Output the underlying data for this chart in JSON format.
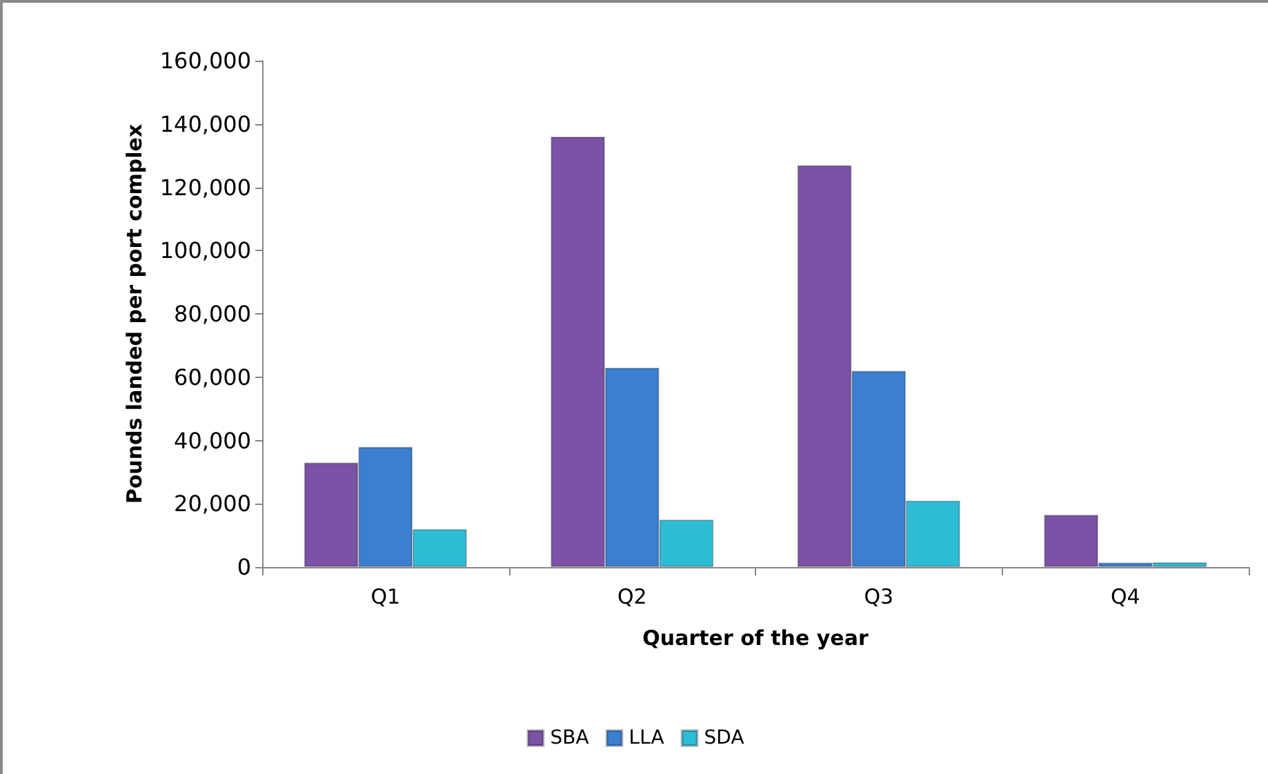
{
  "chart_data": {
    "type": "bar",
    "xlabel": "Quarter of the year",
    "ylabel": "Pounds landed per port complex",
    "categories": [
      "Q1",
      "Q2",
      "Q3",
      "Q4"
    ],
    "series": [
      {
        "name": "SBA",
        "color": "#7b52a6",
        "values": [
          33000,
          136000,
          127000,
          16500
        ]
      },
      {
        "name": "LLA",
        "color": "#3a7fd0",
        "values": [
          38000,
          63000,
          62000,
          1400
        ]
      },
      {
        "name": "SDA",
        "color": "#2fbdd6",
        "values": [
          12000,
          15000,
          21000,
          1500
        ]
      }
    ],
    "ylim": [
      0,
      160000
    ],
    "yticks": [
      0,
      {
        "value": 20000,
        "label": "20,000"
      },
      {
        "value": 40000,
        "label": "40,000"
      },
      {
        "value": 60000,
        "label": "60,000"
      },
      {
        "value": 80000,
        "label": "80,000"
      },
      {
        "value": 100000,
        "label": "100,000"
      },
      {
        "value": 120000,
        "label": "120,000"
      },
      {
        "value": 140000,
        "label": "140,000"
      },
      {
        "value": 160000,
        "label": "160,000"
      }
    ],
    "grid": false,
    "legend": "bottom"
  }
}
